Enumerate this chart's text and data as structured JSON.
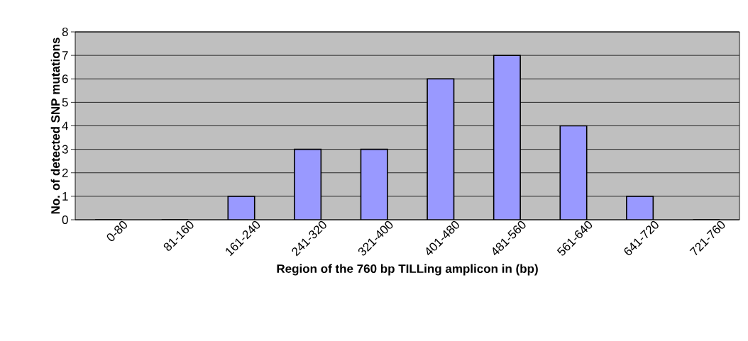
{
  "chart_data": {
    "type": "bar",
    "xlabel": "Region of the 760 bp TILLing amplicon in (bp)",
    "ylabel": "No. of detected SNP mutations",
    "categories": [
      "0-80",
      "81-160",
      "161-240",
      "241-320",
      "321-400",
      "401-480",
      "481-560",
      "561-640",
      "641-720",
      "721-760"
    ],
    "values": [
      0,
      0,
      1,
      3,
      3,
      6,
      7,
      4,
      1,
      0
    ],
    "color": "#9999ff",
    "ylim": [
      0,
      8
    ],
    "yticks": [
      0,
      1,
      2,
      3,
      4,
      5,
      6,
      7,
      8
    ],
    "grid": "y"
  }
}
